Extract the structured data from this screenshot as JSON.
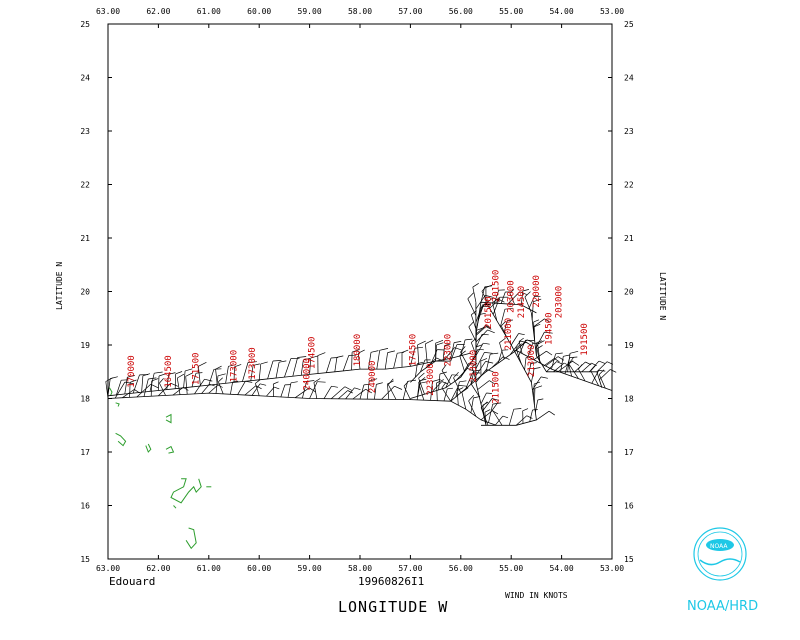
{
  "storm_name": "Edouard",
  "datetime": "19960826I1",
  "x_axis_title": "LONGITUDE  W",
  "y_axis_title": "LATITUDE  N",
  "wind_units": "WIND IN KNOTS",
  "logo_text": "NOAA/HRD",
  "logo_inner_text": "NOAA",
  "colors": {
    "frame": "#000000",
    "flight_labels": "#cc0000",
    "coast": "#2e9e2e",
    "logo": "#1ec8e6"
  },
  "chart_data": {
    "type": "scatter",
    "xlim": [
      63.0,
      53.0
    ],
    "ylim": [
      15,
      25
    ],
    "x_ticks": [
      "63.00",
      "62.00",
      "61.00",
      "60.00",
      "59.00",
      "58.00",
      "57.00",
      "56.00",
      "55.00",
      "54.00",
      "53.00"
    ],
    "y_ticks": [
      "15",
      "16",
      "17",
      "18",
      "19",
      "20",
      "21",
      "22",
      "23",
      "24",
      "25"
    ],
    "flight_labels": [
      {
        "text": "170000",
        "lon": 62.48,
        "lat": 18.2
      },
      {
        "text": "164500",
        "lon": 61.75,
        "lat": 18.2
      },
      {
        "text": "171500",
        "lon": 61.2,
        "lat": 18.25
      },
      {
        "text": "173000",
        "lon": 60.45,
        "lat": 18.3
      },
      {
        "text": "173000",
        "lon": 60.08,
        "lat": 18.35
      },
      {
        "text": "174500",
        "lon": 58.9,
        "lat": 18.55
      },
      {
        "text": "240000",
        "lon": 59.0,
        "lat": 18.15
      },
      {
        "text": "180000",
        "lon": 58.0,
        "lat": 18.6
      },
      {
        "text": "240000",
        "lon": 57.7,
        "lat": 18.1
      },
      {
        "text": "174500",
        "lon": 56.9,
        "lat": 18.6
      },
      {
        "text": "223000",
        "lon": 56.55,
        "lat": 18.05
      },
      {
        "text": "223000",
        "lon": 56.2,
        "lat": 18.6
      },
      {
        "text": "213000",
        "lon": 55.7,
        "lat": 18.3
      },
      {
        "text": "201500",
        "lon": 55.4,
        "lat": 19.3
      },
      {
        "text": "201500",
        "lon": 55.25,
        "lat": 19.8
      },
      {
        "text": "203000",
        "lon": 54.95,
        "lat": 19.6
      },
      {
        "text": "211000",
        "lon": 55.0,
        "lat": 18.9
      },
      {
        "text": "214500",
        "lon": 54.75,
        "lat": 19.5
      },
      {
        "text": "220000",
        "lon": 54.45,
        "lat": 19.7
      },
      {
        "text": "203000",
        "lon": 54.0,
        "lat": 19.5
      },
      {
        "text": "194500",
        "lon": 54.2,
        "lat": 19.0
      },
      {
        "text": "211500",
        "lon": 55.25,
        "lat": 17.9
      },
      {
        "text": "213000",
        "lon": 54.55,
        "lat": 18.4
      },
      {
        "text": "191500",
        "lon": 53.5,
        "lat": 18.8
      }
    ],
    "track": [
      [
        63.0,
        18.05
      ],
      [
        62.5,
        18.1
      ],
      [
        62.0,
        18.15
      ],
      [
        61.5,
        18.2
      ],
      [
        61.0,
        18.25
      ],
      [
        60.5,
        18.3
      ],
      [
        60.0,
        18.35
      ],
      [
        59.5,
        18.4
      ],
      [
        59.0,
        18.45
      ],
      [
        58.5,
        18.5
      ],
      [
        58.0,
        18.55
      ],
      [
        57.5,
        18.55
      ],
      [
        57.0,
        18.6
      ],
      [
        56.5,
        18.7
      ],
      [
        56.2,
        18.75
      ],
      [
        56.0,
        18.8
      ],
      [
        55.8,
        18.85
      ]
    ],
    "flight_segments": [
      [
        [
          63.0,
          18.0
        ],
        [
          61.0,
          18.1
        ],
        [
          59.0,
          18.0
        ],
        [
          57.0,
          17.98
        ],
        [
          56.2,
          17.95
        ],
        [
          55.9,
          17.8
        ],
        [
          55.6,
          17.6
        ],
        [
          55.3,
          17.5
        ]
      ],
      [
        [
          55.5,
          17.5
        ],
        [
          55.7,
          18.3
        ],
        [
          55.7,
          19.2
        ],
        [
          55.6,
          19.8
        ],
        [
          54.8,
          19.75
        ],
        [
          54.5,
          19.6
        ]
      ],
      [
        [
          55.7,
          19.8
        ],
        [
          55.7,
          18.8
        ],
        [
          56.0,
          18.4
        ],
        [
          56.3,
          18.2
        ],
        [
          57.0,
          18.0
        ]
      ],
      [
        [
          55.5,
          19.8
        ],
        [
          55.0,
          19.0
        ],
        [
          54.6,
          18.3
        ],
        [
          54.5,
          17.6
        ],
        [
          54.9,
          17.5
        ],
        [
          55.6,
          17.5
        ]
      ],
      [
        [
          54.6,
          19.6
        ],
        [
          54.5,
          18.8
        ],
        [
          54.3,
          18.5
        ],
        [
          53.6,
          18.5
        ],
        [
          53.3,
          18.5
        ],
        [
          53.2,
          18.2
        ]
      ],
      [
        [
          56.2,
          17.95
        ],
        [
          55.5,
          18.5
        ],
        [
          54.9,
          18.9
        ],
        [
          54.2,
          18.55
        ],
        [
          53.0,
          18.15
        ]
      ],
      [
        [
          56.2,
          18.7
        ],
        [
          56.5,
          18.7
        ],
        [
          56.8,
          18.5
        ],
        [
          57.0,
          18.3
        ]
      ]
    ]
  }
}
